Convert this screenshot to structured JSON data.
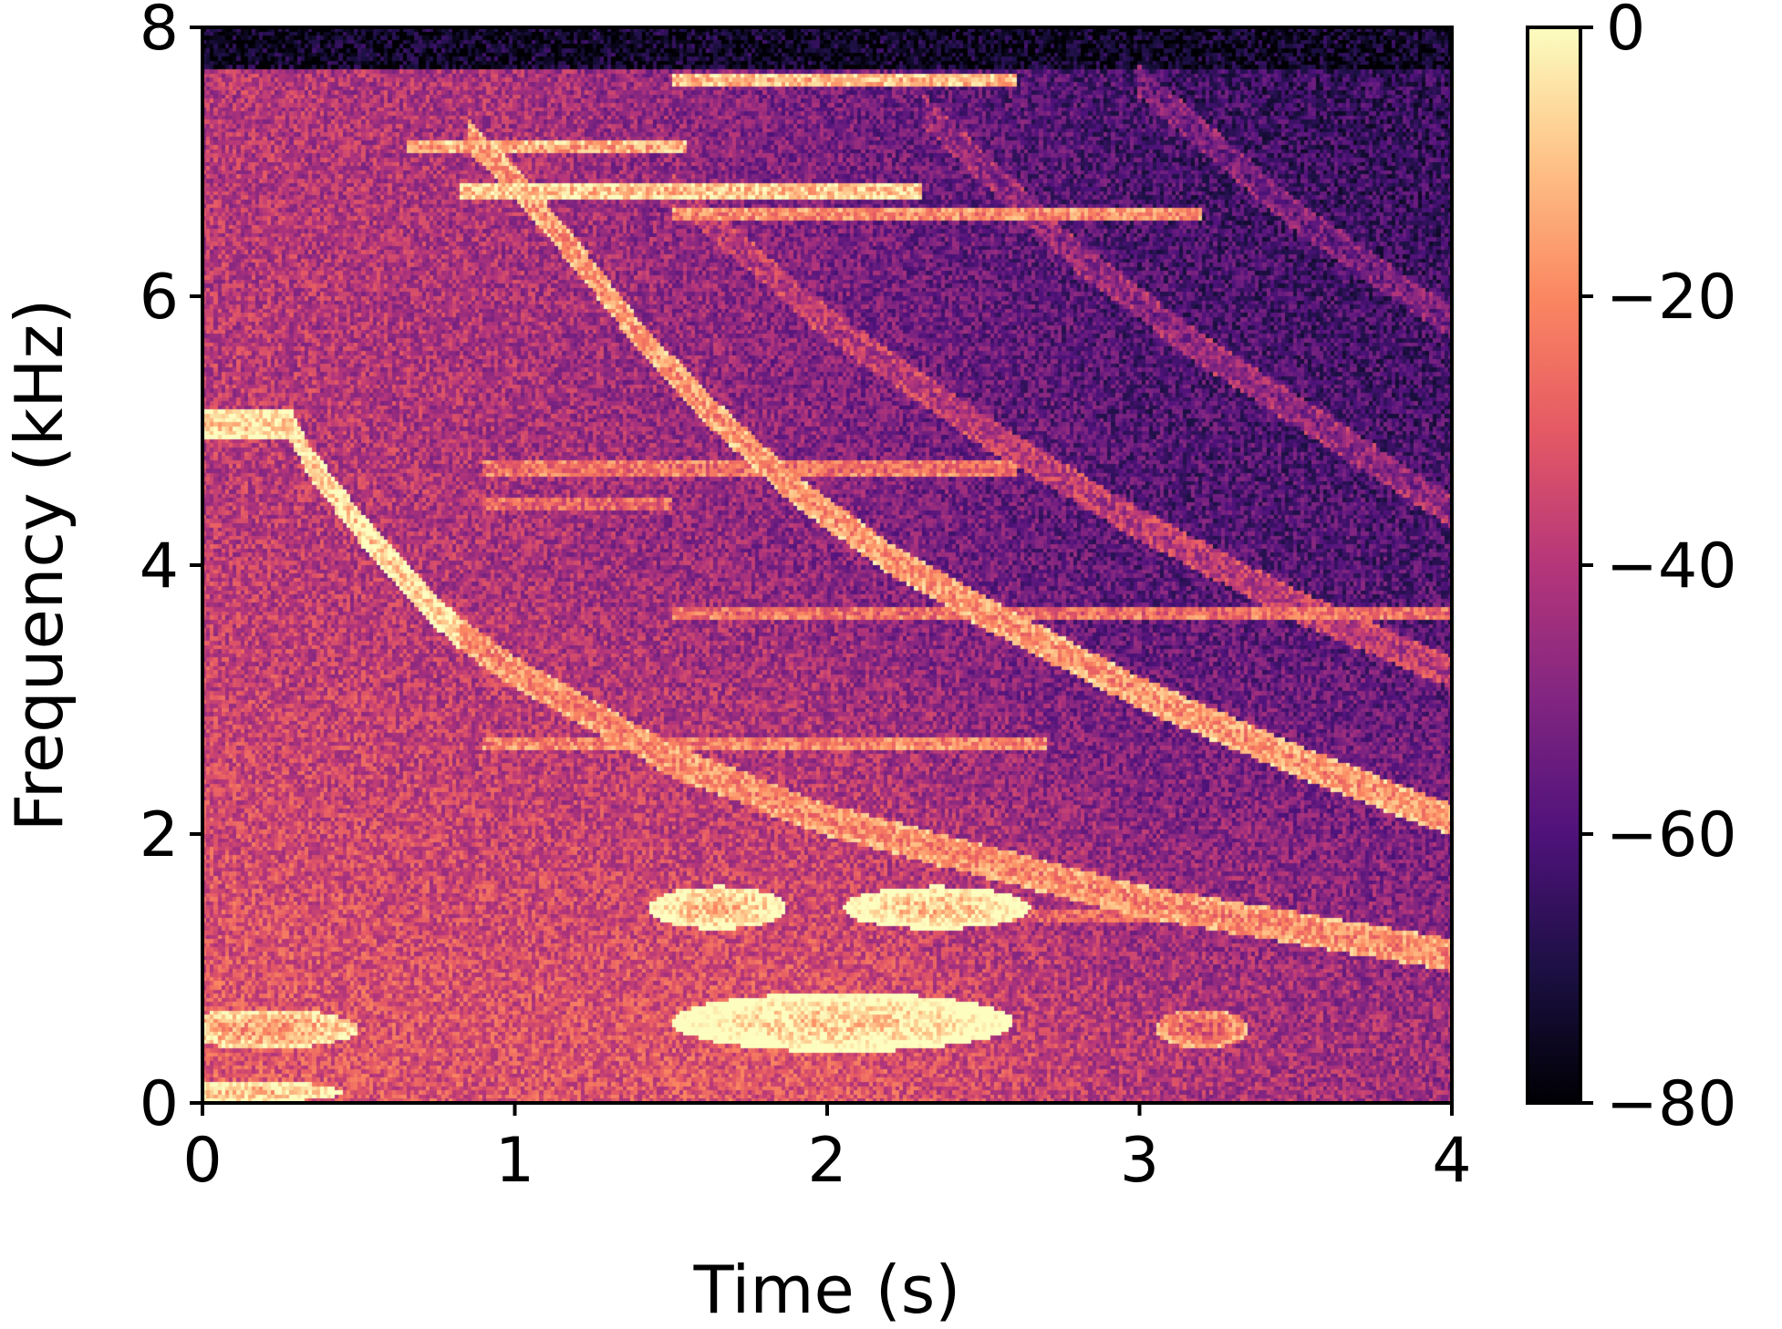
{
  "chart_data": {
    "type": "heatmap",
    "subtype": "spectrogram",
    "title": "",
    "xlabel": "Time (s)",
    "ylabel": "Frequency (kHz)",
    "xlim": [
      0,
      4
    ],
    "ylim": [
      0,
      8
    ],
    "xticks": [
      0,
      1,
      2,
      3,
      4
    ],
    "yticks": [
      0,
      2,
      4,
      6,
      8
    ],
    "xtick_labels": [
      "0",
      "1",
      "2",
      "3",
      "4"
    ],
    "ytick_labels": [
      "0",
      "2",
      "4",
      "6",
      "8"
    ],
    "grid": false,
    "colormap": "magma",
    "colormap_stops": [
      "#000004",
      "#1c1044",
      "#4f127b",
      "#812581",
      "#b5367a",
      "#e55964",
      "#fb8761",
      "#fec287",
      "#fcfdbf"
    ],
    "colorbar": {
      "position": "right",
      "range": [
        -80,
        0
      ],
      "ticks": [
        0,
        -20,
        -40,
        -60,
        -80
      ],
      "tick_labels": [
        "0",
        "−20",
        "−40",
        "−60",
        "−80"
      ]
    },
    "background_level": {
      "description_free": true,
      "points": [
        {
          "t": 0.0,
          "f": 0.5,
          "db": -30
        },
        {
          "t": 0.0,
          "f": 4.0,
          "db": -38
        },
        {
          "t": 0.0,
          "f": 7.5,
          "db": -40
        },
        {
          "t": 1.0,
          "f": 0.5,
          "db": -32
        },
        {
          "t": 1.0,
          "f": 4.0,
          "db": -42
        },
        {
          "t": 1.0,
          "f": 7.5,
          "db": -42
        },
        {
          "t": 2.0,
          "f": 0.5,
          "db": -30
        },
        {
          "t": 2.0,
          "f": 4.0,
          "db": -48
        },
        {
          "t": 2.0,
          "f": 7.5,
          "db": -52
        },
        {
          "t": 3.0,
          "f": 0.5,
          "db": -40
        },
        {
          "t": 3.0,
          "f": 4.0,
          "db": -58
        },
        {
          "t": 3.0,
          "f": 7.5,
          "db": -62
        },
        {
          "t": 4.0,
          "f": 0.5,
          "db": -45
        },
        {
          "t": 4.0,
          "f": 4.0,
          "db": -60
        },
        {
          "t": 4.0,
          "f": 7.5,
          "db": -66
        }
      ],
      "top_band": {
        "f_from": 7.7,
        "f_to": 8.0,
        "db": -78
      }
    },
    "tracks": [
      {
        "points": [
          [
            0.0,
            5.05
          ],
          [
            0.28,
            5.05
          ],
          [
            0.35,
            4.75
          ],
          [
            0.45,
            4.45
          ],
          [
            0.55,
            4.15
          ],
          [
            0.65,
            3.9
          ],
          [
            0.75,
            3.65
          ],
          [
            0.82,
            3.5
          ]
        ],
        "db": -8
      },
      {
        "points": [
          [
            0.82,
            3.5
          ],
          [
            1.0,
            3.2
          ],
          [
            1.2,
            2.95
          ],
          [
            1.5,
            2.55
          ],
          [
            2.0,
            2.1
          ],
          [
            2.5,
            1.8
          ],
          [
            3.0,
            1.5
          ],
          [
            3.5,
            1.3
          ],
          [
            4.0,
            1.1
          ]
        ],
        "db": -22
      },
      {
        "points": [
          [
            0.85,
            7.2
          ],
          [
            1.0,
            6.85
          ],
          [
            1.2,
            6.3
          ],
          [
            1.4,
            5.7
          ],
          [
            1.6,
            5.2
          ],
          [
            1.9,
            4.55
          ],
          [
            2.2,
            4.05
          ],
          [
            2.5,
            3.65
          ],
          [
            3.0,
            3.05
          ],
          [
            3.5,
            2.55
          ],
          [
            4.0,
            2.1
          ]
        ],
        "db": -20
      },
      {
        "points": [
          [
            1.5,
            6.8
          ],
          [
            2.0,
            5.8
          ],
          [
            2.5,
            5.0
          ],
          [
            3.0,
            4.3
          ],
          [
            3.5,
            3.7
          ],
          [
            4.0,
            3.2
          ]
        ],
        "db": -42
      },
      {
        "points": [
          [
            2.3,
            7.4
          ],
          [
            2.8,
            6.3
          ],
          [
            3.2,
            5.6
          ],
          [
            3.6,
            5.0
          ],
          [
            4.0,
            4.4
          ]
        ],
        "db": -50
      },
      {
        "points": [
          [
            3.0,
            7.6
          ],
          [
            3.5,
            6.6
          ],
          [
            4.0,
            5.8
          ]
        ],
        "db": -55
      }
    ],
    "harmonic_lines": [
      {
        "f": 7.6,
        "t0": 1.5,
        "t1": 2.6,
        "db": -14
      },
      {
        "f": 7.1,
        "t0": 0.65,
        "t1": 1.55,
        "db": -16
      },
      {
        "f": 6.78,
        "t0": 0.82,
        "t1": 2.3,
        "db": -12
      },
      {
        "f": 6.6,
        "t0": 1.5,
        "t1": 3.2,
        "db": -22
      },
      {
        "f": 4.72,
        "t0": 0.9,
        "t1": 2.6,
        "db": -28
      },
      {
        "f": 4.45,
        "t0": 0.9,
        "t1": 1.5,
        "db": -30
      },
      {
        "f": 3.65,
        "t0": 1.5,
        "t1": 4.0,
        "db": -28
      },
      {
        "f": 2.68,
        "t0": 0.9,
        "t1": 2.7,
        "db": -24
      },
      {
        "f": 1.38,
        "t0": 2.6,
        "t1": 3.5,
        "db": -30
      }
    ],
    "bright_blobs": [
      {
        "t": 1.65,
        "f": 1.45,
        "dt": 0.22,
        "df": 0.16,
        "db": -12
      },
      {
        "t": 2.35,
        "f": 1.45,
        "dt": 0.3,
        "df": 0.16,
        "db": -10
      },
      {
        "t": 2.05,
        "f": 0.6,
        "dt": 0.55,
        "df": 0.22,
        "db": -8
      },
      {
        "t": 0.2,
        "f": 0.55,
        "dt": 0.3,
        "df": 0.15,
        "db": -18
      },
      {
        "t": 3.2,
        "f": 0.55,
        "dt": 0.15,
        "df": 0.15,
        "db": -30
      },
      {
        "t": 0.15,
        "f": 0.08,
        "dt": 0.3,
        "df": 0.08,
        "db": -12
      }
    ]
  }
}
